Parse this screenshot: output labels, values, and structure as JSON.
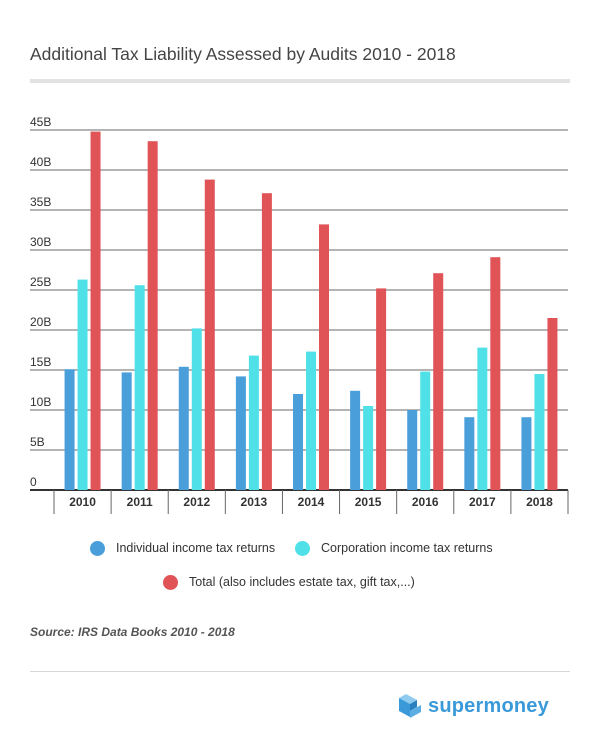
{
  "title": "Additional Tax Liability Assessed by Audits 2010 - 2018",
  "source": "Source: IRS Data Books 2010 - 2018",
  "brand": {
    "name": "supermoney"
  },
  "colors": {
    "individual": "#4a9fdb",
    "corporation": "#50e0e8",
    "total": "#e05357",
    "grid": "#555555",
    "brand": "#3a9ad9"
  },
  "legend": [
    {
      "label": "Individual income tax returns",
      "color": "#4a9fdb"
    },
    {
      "label": "Corporation income tax returns",
      "color": "#50e0e8"
    },
    {
      "label": "Total (also includes estate tax, gift tax,...)",
      "color": "#e05357"
    }
  ],
  "chart_data": {
    "type": "bar",
    "title": "Additional Tax Liability Assessed by Audits 2010 - 2018",
    "xlabel": "",
    "ylabel": "",
    "categories": [
      "2010",
      "2011",
      "2012",
      "2013",
      "2014",
      "2015",
      "2016",
      "2017",
      "2018"
    ],
    "ylim": [
      0,
      45
    ],
    "yticks": [
      0,
      5,
      10,
      15,
      20,
      25,
      30,
      35,
      40,
      45
    ],
    "ytick_labels": [
      "0",
      "5B",
      "10B",
      "15B",
      "20B",
      "25B",
      "30B",
      "35B",
      "40B",
      "45B"
    ],
    "grid": true,
    "legend_position": "bottom",
    "series": [
      {
        "name": "Individual income tax returns",
        "color": "#4a9fdb",
        "values": [
          15.1,
          14.7,
          15.4,
          14.2,
          12.0,
          12.4,
          10.0,
          9.1,
          9.1
        ]
      },
      {
        "name": "Corporation income tax returns",
        "color": "#50e0e8",
        "values": [
          26.3,
          25.6,
          20.2,
          16.8,
          17.3,
          10.5,
          14.8,
          17.8,
          14.5
        ]
      },
      {
        "name": "Total (also includes estate tax, gift tax,...)",
        "color": "#e05357",
        "values": [
          44.8,
          43.6,
          38.8,
          37.1,
          33.2,
          25.2,
          27.1,
          29.1,
          21.5
        ]
      }
    ]
  }
}
